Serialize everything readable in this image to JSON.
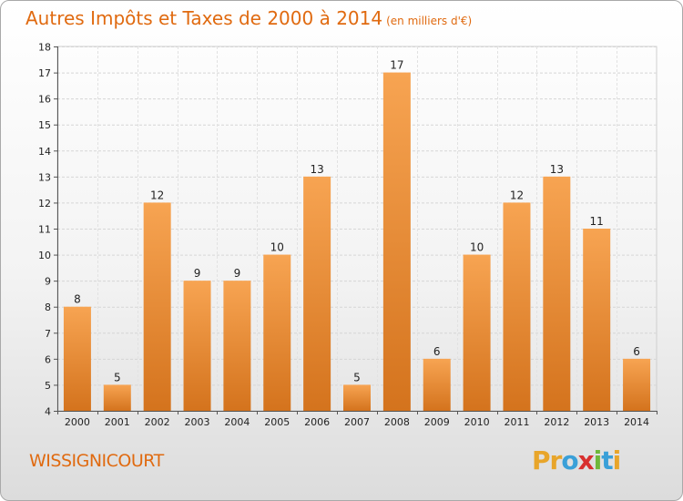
{
  "header": {
    "title": "Autres Impôts et Taxes de 2000 à 2014",
    "subtitle": "(en milliers d'€)"
  },
  "footer": {
    "commune": "WISSIGNICOURT",
    "logo_letters": [
      "P",
      "r",
      "o",
      "x",
      "i",
      "t",
      "i"
    ],
    "logo_colors": [
      "#e8a52a",
      "#e8a52a",
      "#3aa0d8",
      "#d8302f",
      "#6fb83a",
      "#3aa0d8",
      "#e8a52a"
    ]
  },
  "chart_data": {
    "type": "bar",
    "categories": [
      "2000",
      "2001",
      "2002",
      "2003",
      "2004",
      "2005",
      "2006",
      "2007",
      "2008",
      "2009",
      "2010",
      "2011",
      "2012",
      "2013",
      "2014"
    ],
    "values": [
      8,
      5,
      12,
      9,
      9,
      10,
      13,
      5,
      17,
      6,
      10,
      12,
      13,
      11,
      6
    ],
    "ylim": [
      4,
      18
    ],
    "yticks": [
      4,
      5,
      6,
      7,
      8,
      9,
      10,
      11,
      12,
      13,
      14,
      15,
      16,
      17,
      18
    ],
    "grid": true,
    "bar_color_top": "#f7a452",
    "bar_color_bottom": "#d4731d"
  }
}
